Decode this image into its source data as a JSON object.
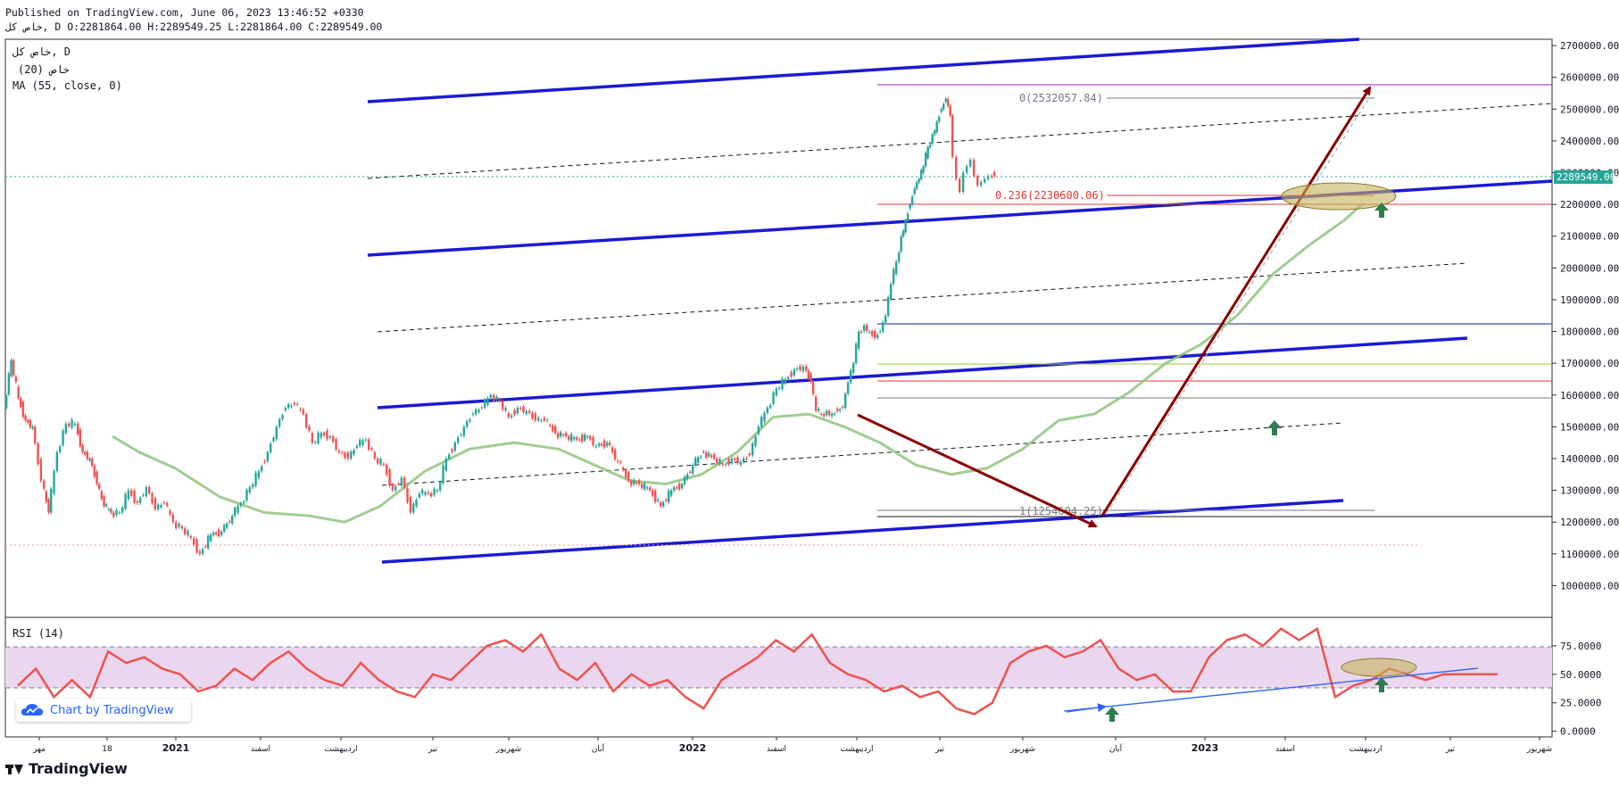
{
  "header": {
    "published": "Published on TradingView.com, June 06, 2023 13:46:52 +0330",
    "ohlc": "ﺧﺎﺹ ﮐﻞ, D O:2281864.00 H:2289549.25 L:2281864.00 C:2289549.00"
  },
  "legend": {
    "line1": "ﺧﺎﺹ ﮐﻞ, D",
    "line2": "(20) ﺧﺎﺹ",
    "line3": "MA (55, close, 0)"
  },
  "rsi_label": "RSI (14)",
  "watermark": "Chart by TradingView",
  "footer_logo": "TradingView",
  "colors": {
    "up": "#26a69a",
    "down": "#ef5350",
    "ma": "#8fc47f",
    "channel": "#1a1ad4",
    "arrow": "#8b0000",
    "rsi": "#ef5350",
    "rsi_band": "#ead6ee",
    "last_price": "#26a69a"
  },
  "chart_data": {
    "type": "line",
    "title": "ﺧﺎﺹ ﮐﻞ, D",
    "price_axis": {
      "ylim": [
        900000,
        2720000
      ],
      "ticks": [
        "2700000.00",
        "2600000.00",
        "2500000.00",
        "2400000.00",
        "2300000.00",
        "2200000.00",
        "2100000.00",
        "2000000.00",
        "1900000.00",
        "1800000.00",
        "1700000.00",
        "1600000.00",
        "1500000.00",
        "1400000.00",
        "1300000.00",
        "1200000.00",
        "1100000.00",
        "1000000.00"
      ],
      "last_price": "2289549.00"
    },
    "time_axis": {
      "ticks": [
        "ﻣﻬﺮ",
        "18",
        "2021",
        "ﺍﺳﻔﻨﺪ",
        "ﺍﺭﺩﯾﺒﻬﺸﺖ",
        "ﺗﯿﺮ",
        "ﺷﻬﺮﯾﻮﺭ",
        "ﺁﺑﺎﻥ",
        "2022",
        "ﺍﺳﻔﻨﺪ",
        "ﺍﺭﺩﯾﺒﻬﺸﺖ",
        "ﺗﯿﺮ",
        "ﺷﻬﺮﯾﻮﺭ",
        "ﺁﺑﺎﻥ",
        "2023",
        "ﺍﺳﻔﻨﺪ",
        "ﺍﺭﺩﯾﺒﻬﺸﺖ",
        "ﺗﯿﺮ",
        "ﺷﻬﺮﯾﻮﺭ"
      ],
      "bold": [
        "2021",
        "2022",
        "2023"
      ]
    },
    "series": [
      {
        "name": "ﺧﺎﺹ ﮐﻞ",
        "type": "candles",
        "x": [
          0,
          8,
          16,
          24,
          32,
          42,
          50,
          60,
          70,
          80,
          88,
          96,
          104,
          112,
          120,
          130,
          140,
          150,
          160,
          170,
          180,
          190,
          200,
          210,
          220,
          232,
          244,
          256,
          266,
          276,
          286,
          296,
          306,
          316,
          326,
          336,
          346,
          356,
          366,
          376,
          386,
          396,
          406,
          416,
          426,
          436,
          446,
          456,
          466,
          476,
          486,
          496,
          506,
          516,
          526,
          536,
          546,
          556,
          566,
          576,
          586,
          596,
          606,
          618,
          630,
          642,
          654,
          664,
          676,
          688,
          700,
          712,
          724,
          736,
          748,
          760,
          772,
          784,
          796,
          806,
          816,
          826,
          836,
          846,
          856,
          866,
          876,
          886,
          896,
          904,
          910,
          916,
          922,
          928,
          934,
          940,
          946,
          952,
          958,
          964,
          970,
          976,
          982,
          988,
          994,
          1000,
          1005,
          1010,
          1015,
          1020,
          1025,
          1030,
          1035,
          1040,
          1045,
          1050,
          1055,
          1060,
          1064,
          1068,
          1072,
          1076,
          1080,
          1084,
          1088,
          1092,
          1096,
          1100,
          1104,
          1110
        ],
        "values": [
          1560000,
          1710000,
          1590000,
          1520000,
          1500000,
          1330000,
          1230000,
          1420000,
          1510000,
          1510000,
          1420000,
          1400000,
          1320000,
          1250000,
          1230000,
          1230000,
          1300000,
          1260000,
          1310000,
          1240000,
          1260000,
          1200000,
          1180000,
          1150000,
          1100000,
          1160000,
          1170000,
          1220000,
          1260000,
          1310000,
          1360000,
          1420000,
          1500000,
          1560000,
          1570000,
          1540000,
          1450000,
          1480000,
          1470000,
          1420000,
          1400000,
          1440000,
          1460000,
          1400000,
          1380000,
          1300000,
          1340000,
          1230000,
          1290000,
          1290000,
          1300000,
          1400000,
          1450000,
          1500000,
          1540000,
          1560000,
          1600000,
          1580000,
          1530000,
          1560000,
          1550000,
          1520000,
          1520000,
          1480000,
          1470000,
          1460000,
          1470000,
          1440000,
          1450000,
          1390000,
          1330000,
          1320000,
          1300000,
          1250000,
          1300000,
          1320000,
          1380000,
          1420000,
          1400000,
          1380000,
          1400000,
          1390000,
          1410000,
          1500000,
          1560000,
          1620000,
          1650000,
          1680000,
          1690000,
          1640000,
          1550000,
          1540000,
          1550000,
          1540000,
          1550000,
          1560000,
          1640000,
          1700000,
          1800000,
          1820000,
          1800000,
          1780000,
          1800000,
          1850000,
          1950000,
          2020000,
          2100000,
          2150000,
          2200000,
          2250000,
          2280000,
          2320000,
          2380000,
          2420000,
          2460000,
          2500000,
          2532058,
          2480000,
          2350000,
          2280000,
          2240000,
          2300000,
          2320000,
          2340000,
          2290000,
          2260000,
          2270000,
          2280000,
          2289549,
          2289549
        ]
      },
      {
        "name": "MA (55, close, 0)",
        "type": "line",
        "x": [
          120,
          150,
          190,
          240,
          290,
          340,
          380,
          420,
          470,
          520,
          570,
          620,
          660,
          700,
          740,
          780,
          820,
          860,
          900,
          940,
          980,
          1020,
          1060,
          1100,
          1140,
          1180,
          1220,
          1260,
          1300,
          1340,
          1380,
          1420,
          1460,
          1500,
          1520
        ],
        "values": [
          1470000,
          1420000,
          1370000,
          1280000,
          1230000,
          1220000,
          1200000,
          1250000,
          1360000,
          1430000,
          1450000,
          1430000,
          1380000,
          1330000,
          1320000,
          1350000,
          1420000,
          1530000,
          1540000,
          1500000,
          1450000,
          1380000,
          1350000,
          1370000,
          1430000,
          1520000,
          1540000,
          1610000,
          1700000,
          1760000,
          1850000,
          1980000,
          2070000,
          2150000,
          2200000
        ]
      },
      {
        "name": "RSI (14)",
        "type": "line",
        "ylim": [
          -5,
          100
        ],
        "x": [
          0,
          20,
          40,
          60,
          80,
          100,
          120,
          140,
          160,
          180,
          200,
          220,
          240,
          260,
          280,
          300,
          320,
          340,
          360,
          380,
          400,
          420,
          440,
          460,
          480,
          500,
          520,
          540,
          560,
          580,
          600,
          620,
          640,
          660,
          680,
          700,
          720,
          740,
          760,
          780,
          800,
          820,
          840,
          860,
          880,
          900,
          920,
          940,
          960,
          980,
          1000,
          1020,
          1040,
          1060,
          1080,
          1100,
          1120,
          1140,
          1160,
          1180,
          1200,
          1220,
          1240,
          1260,
          1280,
          1300,
          1320,
          1340,
          1360,
          1380,
          1400,
          1420,
          1440,
          1460,
          1480,
          1500,
          1520,
          1540,
          1560,
          1580,
          1600,
          1620,
          1640
        ],
        "values": [
          40,
          55,
          30,
          45,
          30,
          70,
          60,
          65,
          55,
          50,
          35,
          40,
          55,
          45,
          60,
          70,
          55,
          45,
          40,
          60,
          45,
          35,
          30,
          50,
          45,
          60,
          75,
          80,
          70,
          85,
          55,
          45,
          60,
          35,
          50,
          40,
          45,
          30,
          20,
          45,
          55,
          65,
          80,
          70,
          85,
          60,
          50,
          45,
          35,
          40,
          30,
          35,
          20,
          15,
          25,
          60,
          70,
          75,
          65,
          70,
          80,
          55,
          45,
          50,
          35,
          35,
          65,
          80,
          85,
          75,
          90,
          80,
          90,
          30,
          40,
          45,
          55,
          50,
          45,
          50,
          50,
          50,
          50
        ]
      }
    ],
    "levels": [
      {
        "label": "0(2532057.84)",
        "value": 2532057.84
      },
      {
        "label": "0.236(2230600.06)",
        "value": 2230600.06
      },
      {
        "label": "1(1254604.25)",
        "value": 1254604.25
      }
    ],
    "rsi_axis": {
      "ticks": [
        "75.0000",
        "50.0000",
        "25.0000",
        "0.0000"
      ]
    }
  }
}
